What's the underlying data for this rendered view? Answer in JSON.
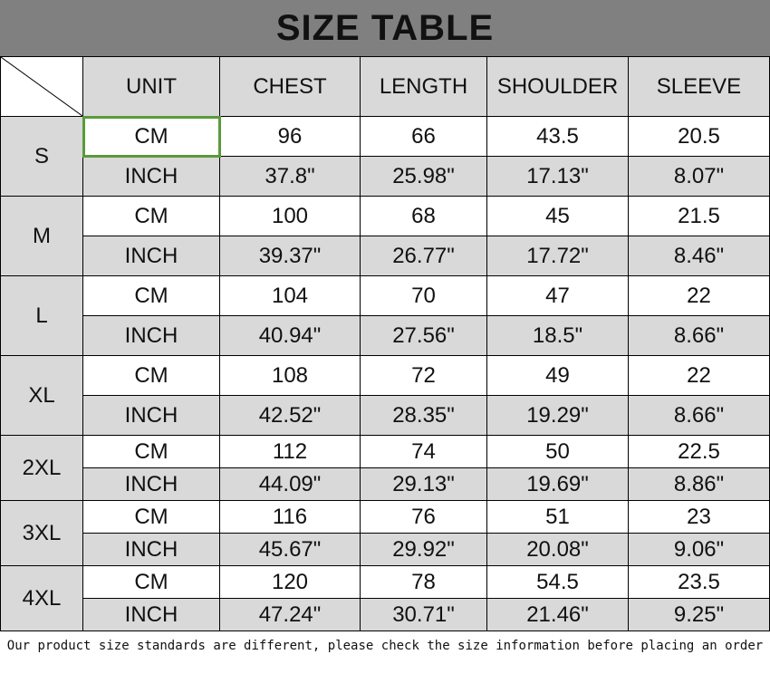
{
  "title": "SIZE TABLE",
  "headers": [
    "UNIT",
    "CHEST",
    "LENGTH",
    "SHOULDER",
    "SLEEVE"
  ],
  "selected_cell_color": "#5a9a3a",
  "rows": [
    {
      "size": "S",
      "cm": [
        "CM",
        "96",
        "66",
        "43.5",
        "20.5"
      ],
      "inch": [
        "INCH",
        "37.8\"",
        "25.98\"",
        "17.13\"",
        "8.07\""
      ]
    },
    {
      "size": "M",
      "cm": [
        "CM",
        "100",
        "68",
        "45",
        "21.5"
      ],
      "inch": [
        "INCH",
        "39.37\"",
        "26.77\"",
        "17.72\"",
        "8.46\""
      ]
    },
    {
      "size": "L",
      "cm": [
        "CM",
        "104",
        "70",
        "47",
        "22"
      ],
      "inch": [
        "INCH",
        "40.94\"",
        "27.56\"",
        "18.5\"",
        "8.66\""
      ]
    },
    {
      "size": "XL",
      "cm": [
        "CM",
        "108",
        "72",
        "49",
        "22"
      ],
      "inch": [
        "INCH",
        "42.52\"",
        "28.35\"",
        "19.29\"",
        "8.66\""
      ]
    },
    {
      "size": "2XL",
      "cm": [
        "CM",
        "112",
        "74",
        "50",
        "22.5"
      ],
      "inch": [
        "INCH",
        "44.09\"",
        "29.13\"",
        "19.69\"",
        "8.86\""
      ]
    },
    {
      "size": "3XL",
      "cm": [
        "CM",
        "116",
        "76",
        "51",
        "23"
      ],
      "inch": [
        "INCH",
        "45.67\"",
        "29.92\"",
        "20.08\"",
        "9.06\""
      ]
    },
    {
      "size": "4XL",
      "cm": [
        "CM",
        "120",
        "78",
        "54.5",
        "23.5"
      ],
      "inch": [
        "INCH",
        "47.24\"",
        "30.71\"",
        "21.46\"",
        "9.25\""
      ]
    }
  ],
  "note": "Our product size standards are different, please check the size information before placing an order"
}
